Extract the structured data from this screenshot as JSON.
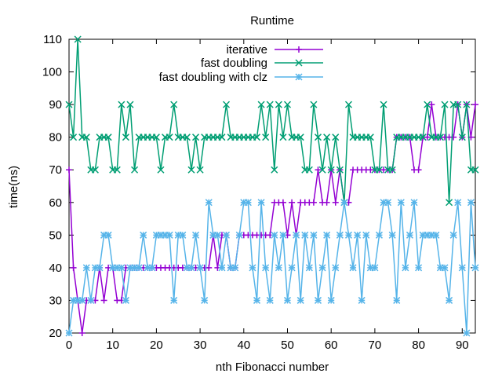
{
  "chart_data": {
    "type": "line",
    "title": "Runtime",
    "xlabel": "nth Fibonacci number",
    "ylabel": "time(ns)",
    "xlim": [
      0,
      93
    ],
    "ylim": [
      20,
      110
    ],
    "xticks": [
      0,
      10,
      20,
      30,
      40,
      50,
      60,
      70,
      80,
      90
    ],
    "yticks": [
      20,
      30,
      40,
      50,
      60,
      70,
      80,
      90,
      100,
      110
    ],
    "grid": false,
    "legend_position": "top-right",
    "series": [
      {
        "name": "iterative",
        "color": "#9400d3",
        "marker": "plus",
        "x": [
          0,
          1,
          2,
          3,
          4,
          5,
          6,
          7,
          8,
          9,
          10,
          11,
          12,
          13,
          14,
          15,
          16,
          17,
          18,
          19,
          20,
          21,
          22,
          23,
          24,
          25,
          26,
          27,
          28,
          29,
          30,
          31,
          32,
          33,
          34,
          35,
          36,
          37,
          38,
          39,
          40,
          41,
          42,
          43,
          44,
          45,
          46,
          47,
          48,
          49,
          50,
          51,
          52,
          53,
          54,
          55,
          56,
          57,
          58,
          59,
          60,
          61,
          62,
          63,
          64,
          65,
          66,
          67,
          68,
          69,
          70,
          71,
          72,
          73,
          74,
          75,
          76,
          77,
          78,
          79,
          80,
          81,
          82,
          83,
          84,
          85,
          86,
          87,
          88,
          89,
          90,
          91,
          92,
          93
        ],
        "values": [
          70,
          40,
          30,
          20,
          30,
          30,
          30,
          40,
          30,
          40,
          40,
          30,
          30,
          40,
          40,
          40,
          40,
          40,
          40,
          40,
          40,
          40,
          40,
          40,
          40,
          40,
          40,
          40,
          40,
          40,
          40,
          40,
          40,
          50,
          40,
          50,
          50,
          40,
          40,
          50,
          50,
          50,
          50,
          50,
          50,
          50,
          50,
          60,
          60,
          60,
          50,
          60,
          50,
          60,
          60,
          60,
          60,
          70,
          60,
          60,
          70,
          60,
          70,
          60,
          60,
          70,
          70,
          70,
          70,
          70,
          70,
          70,
          70,
          70,
          70,
          80,
          80,
          80,
          80,
          70,
          70,
          80,
          80,
          90,
          80,
          80,
          80,
          80,
          80,
          90,
          80,
          90,
          80,
          90
        ]
      },
      {
        "name": "fast doubling",
        "color": "#009e73",
        "marker": "cross",
        "x": [
          0,
          1,
          2,
          3,
          4,
          5,
          6,
          7,
          8,
          9,
          10,
          11,
          12,
          13,
          14,
          15,
          16,
          17,
          18,
          19,
          20,
          21,
          22,
          23,
          24,
          25,
          26,
          27,
          28,
          29,
          30,
          31,
          32,
          33,
          34,
          35,
          36,
          37,
          38,
          39,
          40,
          41,
          42,
          43,
          44,
          45,
          46,
          47,
          48,
          49,
          50,
          51,
          52,
          53,
          54,
          55,
          56,
          57,
          58,
          59,
          60,
          61,
          62,
          63,
          64,
          65,
          66,
          67,
          68,
          69,
          70,
          71,
          72,
          73,
          74,
          75,
          76,
          77,
          78,
          79,
          80,
          81,
          82,
          83,
          84,
          85,
          86,
          87,
          88,
          89,
          90,
          91,
          92,
          93
        ],
        "values": [
          90,
          80,
          110,
          80,
          80,
          70,
          70,
          80,
          80,
          80,
          70,
          70,
          90,
          80,
          90,
          70,
          80,
          80,
          80,
          80,
          80,
          70,
          80,
          80,
          90,
          80,
          80,
          80,
          70,
          80,
          70,
          80,
          80,
          80,
          80,
          80,
          90,
          80,
          80,
          80,
          80,
          80,
          80,
          80,
          90,
          80,
          90,
          70,
          90,
          80,
          90,
          80,
          80,
          80,
          70,
          70,
          90,
          80,
          70,
          80,
          70,
          80,
          70,
          60,
          90,
          80,
          80,
          80,
          80,
          80,
          70,
          70,
          90,
          70,
          70,
          80,
          80,
          80,
          80,
          80,
          80,
          80,
          90,
          80,
          80,
          80,
          90,
          60,
          90,
          90,
          80,
          90,
          70,
          70
        ]
      },
      {
        "name": "fast doubling with clz",
        "color": "#56b4e9",
        "marker": "star",
        "x": [
          0,
          1,
          2,
          3,
          4,
          5,
          6,
          7,
          8,
          9,
          10,
          11,
          12,
          13,
          14,
          15,
          16,
          17,
          18,
          19,
          20,
          21,
          22,
          23,
          24,
          25,
          26,
          27,
          28,
          29,
          30,
          31,
          32,
          33,
          34,
          35,
          36,
          37,
          38,
          39,
          40,
          41,
          42,
          43,
          44,
          45,
          46,
          47,
          48,
          49,
          50,
          51,
          52,
          53,
          54,
          55,
          56,
          57,
          58,
          59,
          60,
          61,
          62,
          63,
          64,
          65,
          66,
          67,
          68,
          69,
          70,
          71,
          72,
          73,
          74,
          75,
          76,
          77,
          78,
          79,
          80,
          81,
          82,
          83,
          84,
          85,
          86,
          87,
          88,
          89,
          90,
          91,
          92,
          93
        ],
        "values": [
          20,
          30,
          30,
          30,
          40,
          30,
          40,
          40,
          50,
          50,
          40,
          40,
          40,
          30,
          40,
          40,
          40,
          50,
          40,
          40,
          50,
          50,
          50,
          50,
          30,
          50,
          50,
          40,
          40,
          50,
          40,
          30,
          60,
          50,
          50,
          40,
          50,
          40,
          40,
          50,
          60,
          60,
          40,
          30,
          60,
          40,
          30,
          50,
          40,
          50,
          30,
          40,
          50,
          30,
          50,
          40,
          50,
          30,
          40,
          50,
          30,
          40,
          50,
          60,
          50,
          40,
          50,
          30,
          50,
          40,
          40,
          50,
          60,
          60,
          50,
          30,
          60,
          40,
          50,
          60,
          40,
          50,
          50,
          50,
          50,
          40,
          40,
          30,
          50,
          60,
          40,
          20,
          60,
          40
        ]
      }
    ]
  }
}
